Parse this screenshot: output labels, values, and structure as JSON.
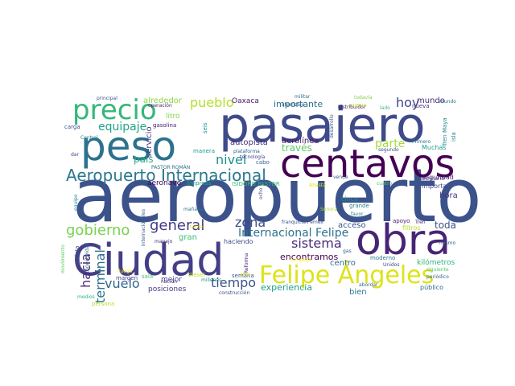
{
  "word_cloud": {
    "words": [
      {
        "text": "aeropuerto",
        "color": "#3b528b"
      },
      {
        "text": "pasajero",
        "color": "#3e4a89"
      },
      {
        "text": "obra",
        "color": "#482475"
      },
      {
        "text": "Ciudad",
        "color": "#433e85"
      },
      {
        "text": "peso",
        "color": "#2c728e"
      },
      {
        "text": "centavos",
        "color": "#440154"
      },
      {
        "text": "precio",
        "color": "#35b779"
      },
      {
        "text": "Felipe Ángeles",
        "color": "#dde318"
      },
      {
        "text": "Aeropuerto Internacional",
        "color": "#2a788e"
      },
      {
        "text": "gobierno",
        "color": "#7ad151"
      },
      {
        "text": "general",
        "color": "#443983"
      },
      {
        "text": "sistema",
        "color": "#472c7a"
      },
      {
        "text": "Internacional Felipe",
        "color": "#2c728e"
      },
      {
        "text": "pueblo",
        "color": "#b5de2b"
      },
      {
        "text": "vuelo",
        "color": "#31688e"
      },
      {
        "text": "tiempo",
        "color": "#3b528b"
      },
      {
        "text": "equipaje",
        "color": "#20a486"
      },
      {
        "text": "hacia",
        "color": "#482878"
      },
      {
        "text": "terminal",
        "color": "#2c728e"
      },
      {
        "text": "nivel",
        "color": "#21918c"
      },
      {
        "text": "zona",
        "color": "#3e4a89"
      },
      {
        "text": "hoy",
        "color": "#414487"
      },
      {
        "text": "parte",
        "color": "#a5db36"
      },
      {
        "text": "mundo",
        "color": "#472d7b"
      },
      {
        "text": "toda",
        "color": "#3b528b"
      },
      {
        "text": "hora",
        "color": "#46327e"
      },
      {
        "text": "país",
        "color": "#28ae80"
      },
      {
        "text": "experiencia",
        "color": "#1f9e89"
      },
      {
        "text": "través",
        "color": "#5ec962"
      },
      {
        "text": "encontramos",
        "color": "#440154"
      },
      {
        "text": "importante",
        "color": "#2d708e"
      },
      {
        "text": "alrededor",
        "color": "#90d743"
      },
      {
        "text": "servicio",
        "color": "#443a83"
      },
      {
        "text": "autopista",
        "color": "#46307e"
      },
      {
        "text": "aerolínea",
        "color": "#48186a"
      },
      {
        "text": "seguridad",
        "color": "#481f70"
      },
      {
        "text": "importa",
        "color": "#3f4788"
      },
      {
        "text": "bien",
        "color": "#2a788e"
      },
      {
        "text": "centro",
        "color": "#31688e"
      },
      {
        "text": "acceso",
        "color": "#3b528b"
      },
      {
        "text": "posiciones",
        "color": "#453781"
      },
      {
        "text": "mejor",
        "color": "#404688"
      },
      {
        "text": "gran",
        "color": "#3cbb75"
      },
      {
        "text": "litro",
        "color": "#84d44b"
      },
      {
        "text": "Oaxaca",
        "color": "#48186a"
      },
      {
        "text": "aeronave",
        "color": "#440154"
      },
      {
        "text": "kilómetros",
        "color": "#2eb37c"
      },
      {
        "text": "público",
        "color": "#2e6e8e"
      },
      {
        "text": "Tren Maya",
        "color": "#25838e"
      },
      {
        "text": "isla",
        "color": "#26828e"
      },
      {
        "text": "seis",
        "color": "#228c8d"
      },
      {
        "text": "Muchas",
        "color": "#1fa088"
      },
      {
        "text": "cinco",
        "color": "#1f968b"
      },
      {
        "text": "principal",
        "color": "#3a548c"
      },
      {
        "text": "operación",
        "color": "#481b6d"
      },
      {
        "text": "gasolina",
        "color": "#482173"
      },
      {
        "text": "carga",
        "color": "#3b528b"
      },
      {
        "text": "dar",
        "color": "#424086"
      },
      {
        "text": "militar",
        "color": "#30698e"
      },
      {
        "text": "aterrizaje",
        "color": "#355f8d"
      },
      {
        "text": "todavía",
        "color": "#7fd34e"
      },
      {
        "text": "distribuidor",
        "color": "#471365"
      },
      {
        "text": "nuevo",
        "color": "#b8de29"
      },
      {
        "text": "lado",
        "color": "#3aba76"
      },
      {
        "text": "nueva",
        "color": "#46337f"
      },
      {
        "text": "desarrollo",
        "color": "#3a538b"
      },
      {
        "text": "Primero",
        "color": "#2a768e"
      },
      {
        "text": "segundo",
        "color": "#3d4d8a"
      },
      {
        "text": "manera",
        "color": "#1e9c89"
      },
      {
        "text": "plataforma",
        "color": "#33638d"
      },
      {
        "text": "tecnología",
        "color": "#414287"
      },
      {
        "text": "cabo",
        "color": "#32648e"
      },
      {
        "text": "PASTOR ROMÁN",
        "color": "#2e6f8e"
      },
      {
        "text": "ISIDORO PASTOR",
        "color": "#38b977"
      },
      {
        "text": "empresa",
        "color": "#20a386"
      },
      {
        "text": "vende",
        "color": "#3b528b"
      },
      {
        "text": "Ahasta",
        "color": "#e2e418"
      },
      {
        "text": "cuatro",
        "color": "#4fc46a"
      },
      {
        "text": "secretario",
        "color": "#443a83"
      },
      {
        "text": "siguiente",
        "color": "#52c569"
      },
      {
        "text": "periódico",
        "color": "#33638d"
      },
      {
        "text": "mismo",
        "color": "#31688e"
      },
      {
        "text": "moderno",
        "color": "#2a788e"
      },
      {
        "text": "grande",
        "color": "#26828e"
      },
      {
        "text": "favor",
        "color": "#23898e"
      },
      {
        "text": "apoyo",
        "color": "#48196b"
      },
      {
        "text": "filtros",
        "color": "#b8de29"
      },
      {
        "text": "Tren",
        "color": "#482475"
      },
      {
        "text": "Unidos",
        "color": "#3e4989"
      },
      {
        "text": "abordar",
        "color": "#31688e"
      },
      {
        "text": "equipo",
        "color": "#24868e"
      },
      {
        "text": "movimiento",
        "color": "#5ec962"
      },
      {
        "text": "maleta",
        "color": "#38598c"
      },
      {
        "text": "conectividad",
        "color": "#2f6c8e"
      },
      {
        "text": "internacionales",
        "color": "#375a8c"
      },
      {
        "text": "Central",
        "color": "#2a788e"
      },
      {
        "text": "persona",
        "color": "#b5de2b"
      },
      {
        "text": "medios",
        "color": "#2db27d"
      },
      {
        "text": "margen",
        "color": "#443983"
      },
      {
        "text": "manejo",
        "color": "#46327e"
      },
      {
        "text": "mañana",
        "color": "#2c728e"
      },
      {
        "text": "millones",
        "color": "#1f948c"
      },
      {
        "text": "franquicia Pemex",
        "color": "#3d4e8a"
      },
      {
        "text": "Sonora",
        "color": "#a8db34"
      },
      {
        "text": "haciendo",
        "color": "#3e4c8a"
      },
      {
        "text": "semana",
        "color": "#3b528b"
      },
      {
        "text": "Reforma",
        "color": "#482677"
      },
      {
        "text": "diesel",
        "color": "#c2df23"
      },
      {
        "text": "nación",
        "color": "#472a7a"
      },
      {
        "text": "construcción",
        "color": "#3e4c8a"
      },
      {
        "text": "sala",
        "color": "#40bd72"
      },
      {
        "text": "complejo",
        "color": "#fde725"
      },
      {
        "text": "gas",
        "color": "#345f8d"
      },
      {
        "text": "ocho",
        "color": "#414487"
      },
      {
        "text": "ante",
        "color": "#cde11d"
      },
      {
        "text": "tarde",
        "color": "#dde318"
      },
      {
        "text": "lluego",
        "color": "#fde725"
      },
      {
        "text": "mundo",
        "color": "#2d708e"
      }
    ]
  }
}
